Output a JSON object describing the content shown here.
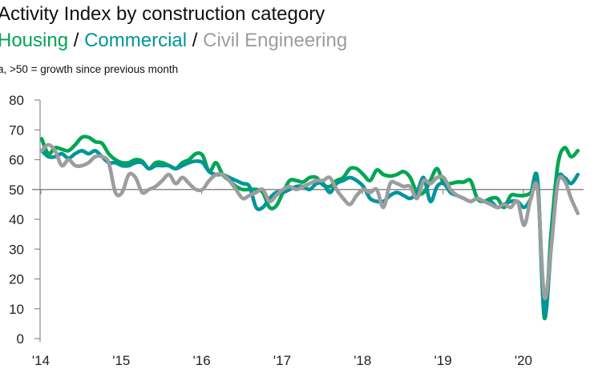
{
  "chart_data": {
    "type": "line",
    "title": "Activity Index by construction category",
    "note": "a, >50 = growth since previous month",
    "legend_separator": "/",
    "x_tick_labels": [
      "'14",
      "'15",
      "'16",
      "'17",
      "'18",
      "'19",
      "'20"
    ],
    "x_start": "2014-01",
    "x_frequency": "monthly",
    "x_end": "2020-09",
    "ylim": [
      0,
      80
    ],
    "y_ticks": [
      0,
      10,
      20,
      30,
      40,
      50,
      60,
      70,
      80
    ],
    "reference_line": 50,
    "grid": false,
    "series": [
      {
        "name": "Housing",
        "color": "#00a651",
        "values": [
          67,
          62,
          64,
          63.5,
          63,
          65,
          67.5,
          67.5,
          66,
          65.5,
          62,
          60,
          59,
          59,
          60,
          59.5,
          57,
          59,
          59,
          58,
          57,
          59,
          60,
          62,
          61.5,
          56,
          59,
          55,
          53,
          51,
          50,
          50,
          50,
          49,
          44,
          44.5,
          49,
          53,
          53,
          52.5,
          54,
          54,
          51.5,
          51,
          53,
          54,
          57,
          57,
          55,
          53,
          56.5,
          55,
          54.5,
          55,
          56,
          54,
          49,
          49,
          53,
          57,
          52,
          52,
          52.5,
          52.5,
          53,
          47,
          46,
          47,
          47,
          44,
          48,
          48,
          48,
          49,
          53,
          7,
          35,
          58,
          64,
          61,
          63
        ]
      },
      {
        "name": "Commercial",
        "color": "#00959a",
        "values": [
          63,
          61,
          61,
          62,
          60.5,
          62,
          63,
          62,
          63,
          61,
          59,
          59,
          58,
          58,
          59,
          59,
          57,
          58,
          58,
          58,
          57,
          58,
          59,
          59.5,
          59,
          56,
          55,
          55,
          54,
          53,
          52,
          51,
          44,
          44,
          47,
          49,
          49,
          50,
          51,
          51,
          50,
          52,
          52,
          49,
          52,
          53,
          54,
          53,
          51,
          47,
          46,
          46,
          48,
          49,
          48,
          47,
          49,
          54,
          46,
          51,
          52,
          49,
          48,
          47,
          46,
          47,
          46,
          46,
          44,
          45,
          46,
          46,
          44,
          47,
          53,
          8,
          30,
          53,
          54,
          52,
          55
        ]
      },
      {
        "name": "Civil Engineering",
        "color": "#9d9d9f",
        "values": [
          63,
          65,
          63,
          58,
          60,
          58,
          58,
          59,
          61,
          61,
          59,
          49,
          49,
          55,
          54,
          49,
          50,
          51,
          53,
          55,
          52,
          54,
          52,
          50,
          50,
          53,
          55,
          55,
          53,
          50,
          47,
          48,
          49,
          50,
          46,
          48,
          50,
          51,
          50,
          51,
          52,
          53,
          53,
          54,
          50,
          47,
          45,
          48,
          50,
          49,
          50,
          44,
          52,
          52,
          51,
          51,
          47,
          53,
          52,
          54,
          54,
          50,
          48,
          47,
          46,
          47,
          46,
          45,
          44,
          45,
          44,
          46,
          38,
          47,
          50,
          14,
          30,
          52,
          53,
          47,
          42
        ]
      }
    ]
  }
}
